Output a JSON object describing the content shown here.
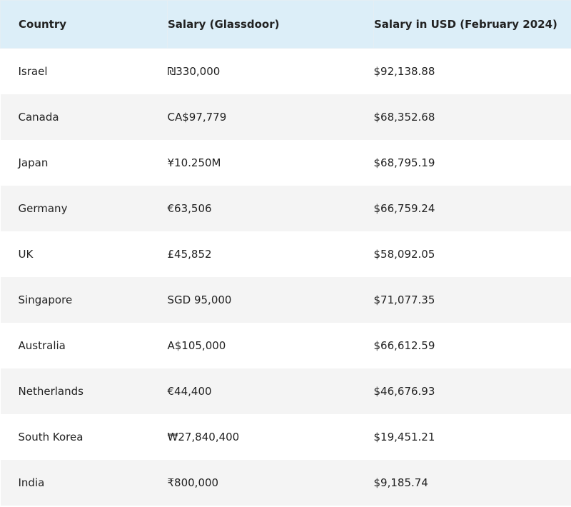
{
  "table": {
    "header": [
      "Country",
      "Salary (Glassdoor)",
      "Salary in USD (February 2024)"
    ],
    "rows": [
      [
        "Israel",
        "₪330,000",
        "$92,138.88"
      ],
      [
        "Canada",
        "CA$97,779",
        "$68,352.68"
      ],
      [
        "Japan",
        "¥10.250M",
        "$68,795.19"
      ],
      [
        "Germany",
        "€63,506",
        "$66,759.24"
      ],
      [
        "UK",
        "£45,852",
        "$58,092.05"
      ],
      [
        "Singapore",
        "SGD 95,000",
        "$71,077.35"
      ],
      [
        "Australia",
        "A$105,000",
        "$66,612.59"
      ],
      [
        "Netherlands",
        "€44,400",
        "$46,676.93"
      ],
      [
        "South Korea",
        "₩27,840,400",
        "$19,451.21"
      ],
      [
        "India",
        "₹800,000",
        "$9,185.74"
      ]
    ]
  }
}
